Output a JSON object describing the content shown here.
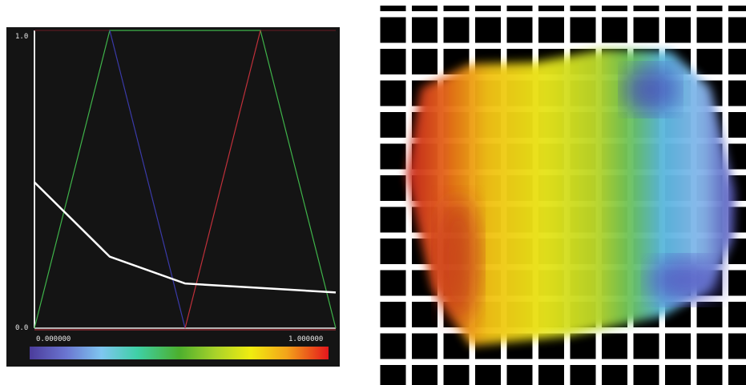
{
  "transfer_function_editor": {
    "y_max_label": "1.0",
    "y_min_label": "0.0",
    "x_min_label": "0.000000",
    "x_max_label": "1.000000"
  },
  "chart_data": {
    "type": "line",
    "xlabel": "",
    "ylabel": "",
    "xlim": [
      0,
      1
    ],
    "ylim": [
      0,
      1
    ],
    "grid": false,
    "series": [
      {
        "color": "#3fb34a",
        "points": [
          [
            0,
            0
          ],
          [
            0.25,
            1
          ],
          [
            0.75,
            1
          ],
          [
            1,
            0
          ]
        ]
      },
      {
        "color": "#3a3aa8",
        "points": [
          [
            0.25,
            1
          ],
          [
            0.5,
            0
          ]
        ]
      },
      {
        "color": "#c0303a",
        "points": [
          [
            0.5,
            0
          ],
          [
            0.75,
            1
          ]
        ]
      },
      {
        "color": "#ffffff",
        "points": [
          [
            0,
            0.49
          ],
          [
            0.25,
            0.24
          ],
          [
            0.5,
            0.15
          ],
          [
            0.75,
            0.135
          ],
          [
            1,
            0.12
          ]
        ]
      }
    ]
  },
  "colors": {
    "panel_background": "#141414",
    "grid_background": "#ffffff",
    "grid_cell": "#000000"
  },
  "icons": {
    "render_view": "volume-rendering-image"
  }
}
